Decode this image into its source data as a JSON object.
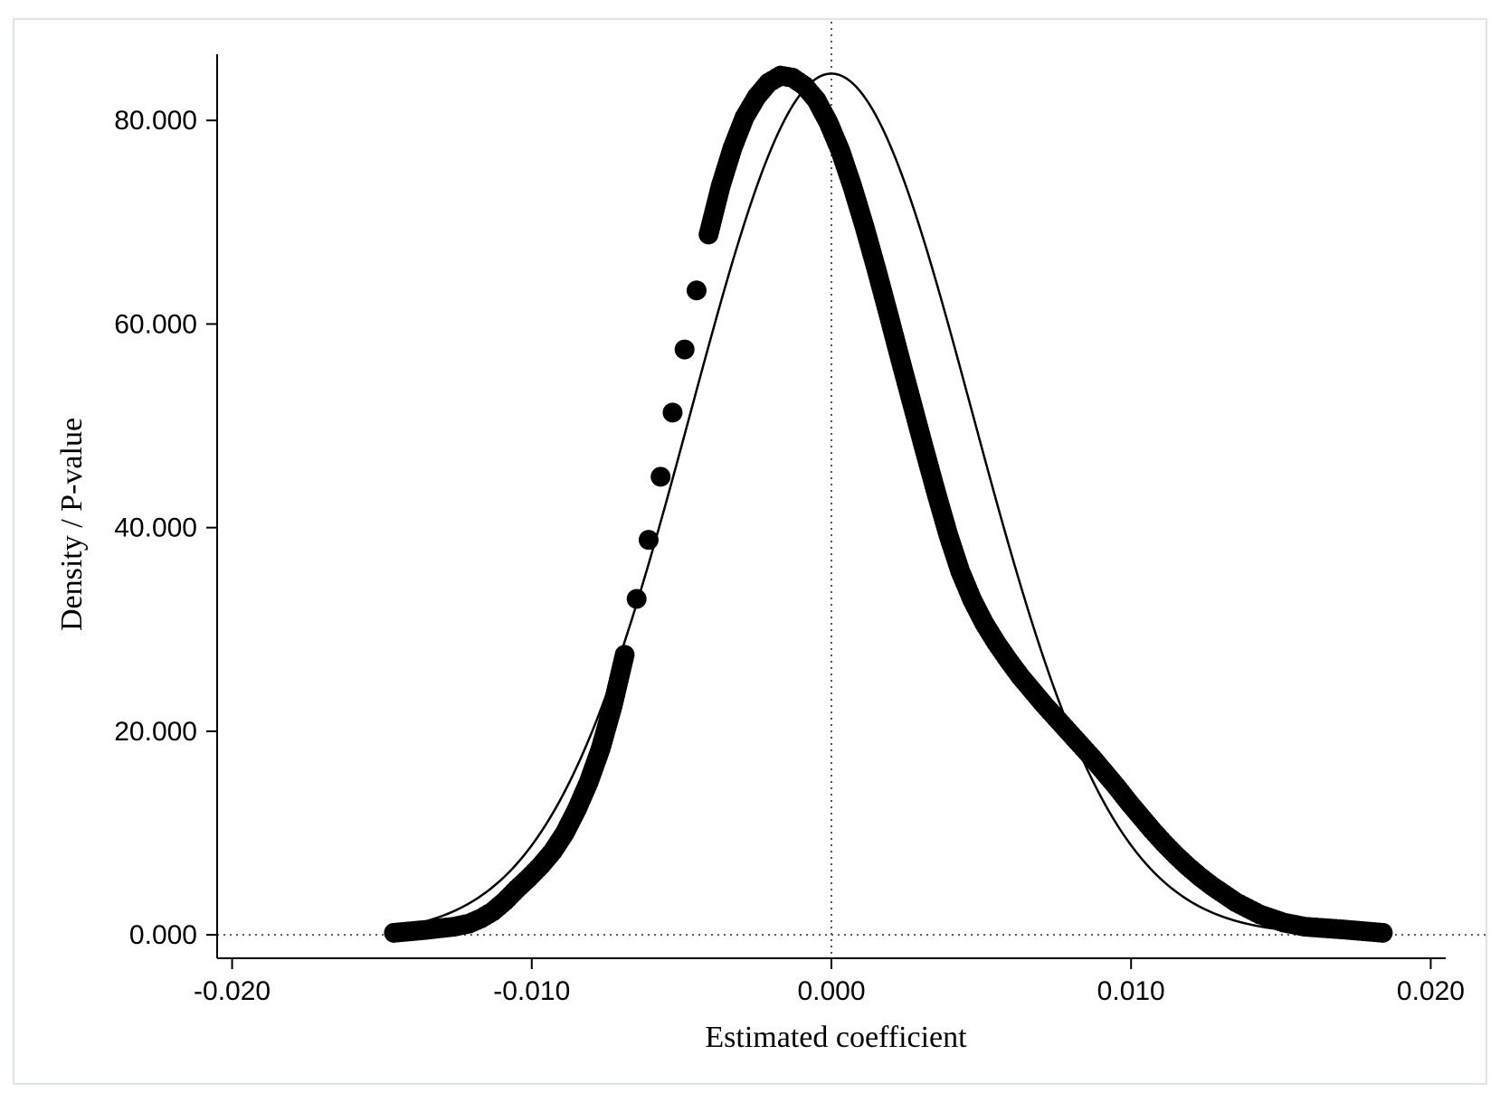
{
  "chart_data": {
    "type": "scatter",
    "xlabel": "Estimated coefficient",
    "ylabel": "Density / P-value",
    "xlim": [
      -0.0205,
      0.0205
    ],
    "ylim": [
      -2.3,
      86.5
    ],
    "x_ticks": [
      -0.02,
      -0.01,
      0.0,
      0.01,
      0.02
    ],
    "x_tick_labels": [
      "-0.020",
      "-0.010",
      "0.000",
      "0.010",
      "0.020"
    ],
    "y_ticks": [
      0,
      20,
      40,
      60,
      80
    ],
    "y_tick_labels": [
      "0.000",
      "20.000",
      "40.000",
      "60.000",
      "80.000"
    ],
    "reference_lines": {
      "x": 0.0,
      "y": 0.0,
      "style": "dotted"
    },
    "grid": false,
    "legend": "none",
    "series": [
      {
        "kind": "points",
        "marker": "filled-circle",
        "color": "#000000",
        "points": [
          [
            -0.0146,
            0.2
          ],
          [
            -0.0135,
            0.5
          ],
          [
            -0.0126,
            0.8
          ],
          [
            -0.0121,
            1.1
          ],
          [
            -0.0117,
            1.6
          ],
          [
            -0.0113,
            2.3
          ],
          [
            -0.0109,
            3.3
          ],
          [
            -0.0105,
            4.5
          ],
          [
            -0.0101,
            5.6
          ],
          [
            -0.0097,
            6.8
          ],
          [
            -0.0093,
            8.2
          ],
          [
            -0.0089,
            10.0
          ],
          [
            -0.0085,
            12.3
          ],
          [
            -0.0081,
            15.0
          ],
          [
            -0.0077,
            18.3
          ],
          [
            -0.0073,
            22.5
          ],
          [
            -0.0069,
            27.5
          ],
          [
            -0.0065,
            33.0
          ],
          [
            -0.0061,
            38.8
          ],
          [
            -0.0057,
            45.0
          ],
          [
            -0.0053,
            51.3
          ],
          [
            -0.0049,
            57.5
          ],
          [
            -0.0045,
            63.3
          ],
          [
            -0.0041,
            68.8
          ],
          [
            -0.0037,
            73.5
          ],
          [
            -0.0033,
            77.3
          ],
          [
            -0.0029,
            80.3
          ],
          [
            -0.0025,
            82.3
          ],
          [
            -0.0021,
            83.7
          ],
          [
            -0.0017,
            84.4
          ],
          [
            -0.0013,
            84.2
          ],
          [
            -0.0009,
            83.4
          ],
          [
            -0.0005,
            82.0
          ],
          [
            -0.0001,
            79.8
          ],
          [
            0.0003,
            77.0
          ],
          [
            0.0007,
            73.5
          ],
          [
            0.0011,
            69.6
          ],
          [
            0.0015,
            65.4
          ],
          [
            0.0019,
            61.0
          ],
          [
            0.0023,
            56.5
          ],
          [
            0.0027,
            52.1
          ],
          [
            0.0031,
            47.7
          ],
          [
            0.0035,
            43.4
          ],
          [
            0.0039,
            39.3
          ],
          [
            0.0043,
            35.7
          ],
          [
            0.0047,
            32.9
          ],
          [
            0.0051,
            30.6
          ],
          [
            0.0055,
            28.7
          ],
          [
            0.0059,
            27.0
          ],
          [
            0.0063,
            25.4
          ],
          [
            0.0067,
            24.0
          ],
          [
            0.0071,
            22.6
          ],
          [
            0.0075,
            21.3
          ],
          [
            0.0079,
            20.0
          ],
          [
            0.0083,
            18.7
          ],
          [
            0.0087,
            17.4
          ],
          [
            0.0091,
            16.0
          ],
          [
            0.0095,
            14.6
          ],
          [
            0.0099,
            13.1
          ],
          [
            0.0103,
            11.7
          ],
          [
            0.0107,
            10.3
          ],
          [
            0.0111,
            9.0
          ],
          [
            0.0115,
            7.8
          ],
          [
            0.0119,
            6.7
          ],
          [
            0.0123,
            5.7
          ],
          [
            0.0127,
            4.8
          ],
          [
            0.0131,
            4.0
          ],
          [
            0.0135,
            3.2
          ],
          [
            0.0139,
            2.6
          ],
          [
            0.0143,
            2.0
          ],
          [
            0.0151,
            1.2
          ],
          [
            0.0158,
            0.8
          ],
          [
            0.0172,
            0.5
          ],
          [
            0.0184,
            0.2
          ]
        ]
      },
      {
        "kind": "line",
        "color": "#000000",
        "distribution": "normal",
        "mean": 0.0,
        "sd": 0.0047,
        "peak": 84.6,
        "x_range": [
          -0.0146,
          0.0185
        ]
      }
    ]
  }
}
